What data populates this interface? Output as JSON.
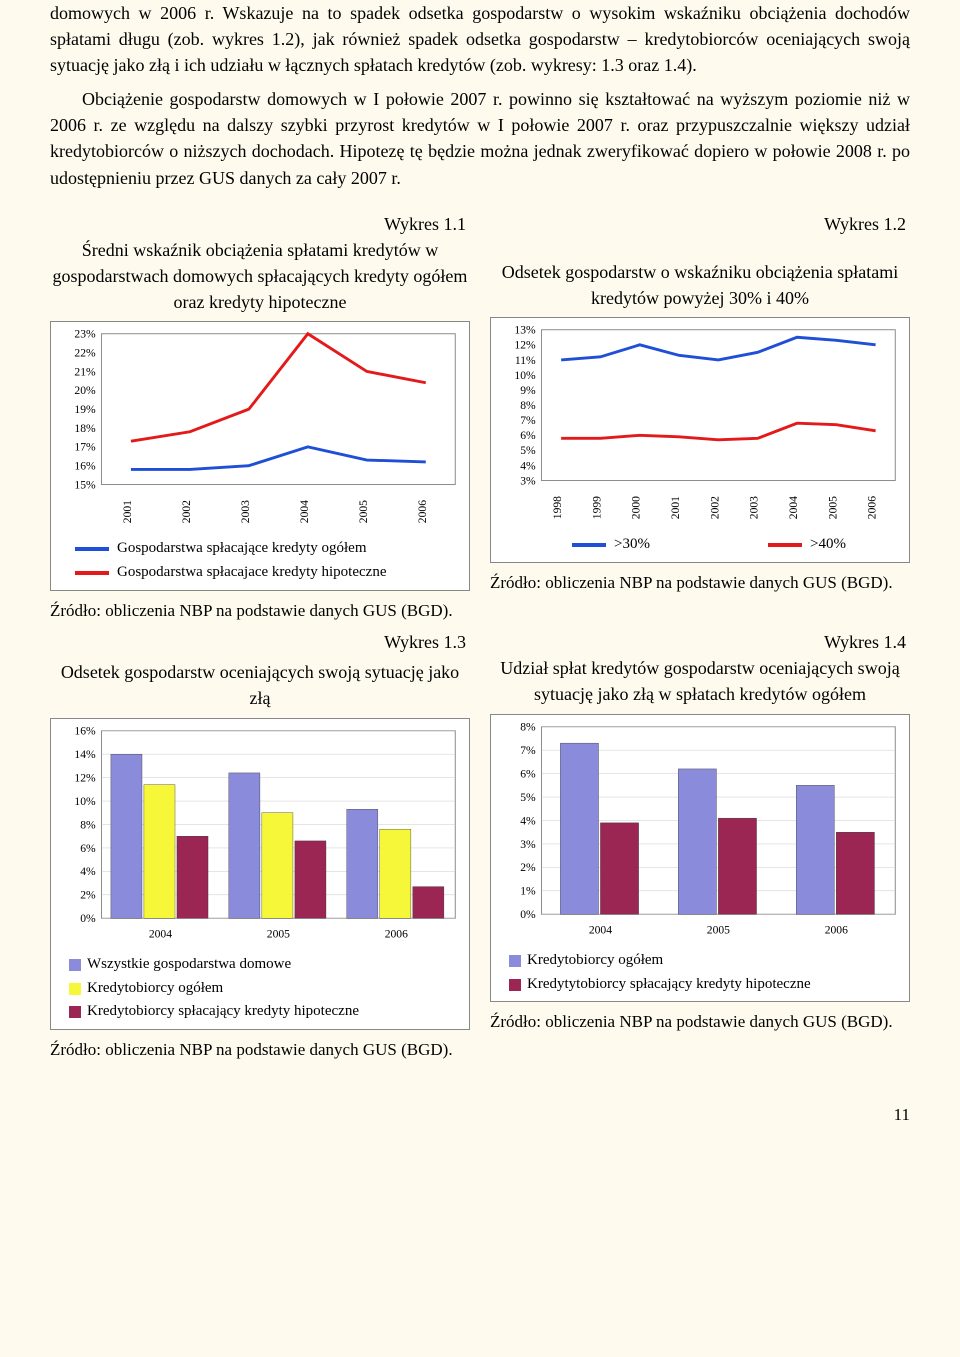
{
  "para1": "domowych w 2006 r. Wskazuje na to spadek odsetka gospodarstw o wysokim wskaźniku obciążenia dochodów spłatami długu (zob. wykres 1.2), jak również spadek odsetka gospodarstw – kredytobiorców oceniających swoją sytuację jako złą i ich udziału w łącznych spłatach kredytów (zob. wykresy: 1.3 oraz 1.4).",
  "para2": "Obciążenie gospodarstw domowych w I połowie 2007 r. powinno się kształtować na wyższym poziomie niż w 2006 r. ze względu na dalszy szybki przyrost kredytów w I połowie 2007 r. oraz przypuszczalnie większy udział kredytobiorców o niższych dochodach. Hipotezę tę będzie można jednak zweryfikować dopiero w połowie 2008 r. po udostępnieniu przez GUS danych za cały 2007 r.",
  "source": "Źródło: obliczenia NBP na podstawie danych GUS (BGD).",
  "pagenum": "11",
  "chart1": {
    "label": "Wykres 1.1",
    "title": "Średni wskaźnik obciążenia spłatami kredytów w gospodarstwach domowych spłacających kredyty ogółem oraz kredyty hipoteczne",
    "yticks": [
      "23%",
      "22%",
      "21%",
      "20%",
      "19%",
      "18%",
      "17%",
      "16%",
      "15%"
    ],
    "xticks": [
      "2001",
      "2002",
      "2003",
      "2004",
      "2005",
      "2006"
    ],
    "series_blue": {
      "color": "#1f4fd6",
      "values": [
        15.8,
        15.8,
        16.0,
        17.0,
        16.3,
        16.2
      ]
    },
    "series_red": {
      "color": "#e41a1a",
      "values": [
        17.3,
        17.8,
        19.0,
        23.0,
        21.0,
        20.4
      ]
    },
    "legend_blue": "Gospodarstwa spłacające kredyty ogółem",
    "legend_red": "Gospodarstwa spłacajace kredyty hipoteczne",
    "line_width": 3,
    "ymin": 15,
    "ymax": 23,
    "bg": "#ffffff",
    "box_border": "#888888",
    "label_fontsize": 12
  },
  "chart2": {
    "label": "Wykres 1.2",
    "title": "Odsetek gospodarstw o wskaźniku obciążenia spłatami kredytów powyżej 30% i 40%",
    "yticks": [
      "13%",
      "12%",
      "11%",
      "10%",
      "9%",
      "8%",
      "7%",
      "6%",
      "5%",
      "4%",
      "3%"
    ],
    "xticks": [
      "1998",
      "1999",
      "2000",
      "2001",
      "2002",
      "2003",
      "2004",
      "2005",
      "2006"
    ],
    "series_blue": {
      "color": "#1f4fd6",
      "values": [
        11.0,
        11.2,
        12.0,
        11.3,
        11.0,
        11.5,
        12.5,
        12.3,
        12.0
      ]
    },
    "series_red": {
      "color": "#e41a1a",
      "values": [
        5.8,
        5.8,
        6.0,
        5.9,
        5.7,
        5.8,
        6.8,
        6.7,
        6.3
      ]
    },
    "legend_blue": ">30%",
    "legend_red": ">40%",
    "line_width": 3,
    "ymin": 3,
    "ymax": 13,
    "bg": "#ffffff",
    "label_fontsize": 12
  },
  "chart3": {
    "label": "Wykres 1.3",
    "title": "Odsetek gospodarstw oceniających swoją sytuację jako złą",
    "yticks": [
      "16%",
      "14%",
      "12%",
      "10%",
      "8%",
      "6%",
      "4%",
      "2%",
      "0%"
    ],
    "xticks": [
      "2004",
      "2005",
      "2006"
    ],
    "ymin": 0,
    "ymax": 16,
    "bar_colors": [
      "#8b8bdc",
      "#f7f73a",
      "#9b2553"
    ],
    "series": [
      [
        14.0,
        11.4,
        7.0
      ],
      [
        12.4,
        9.0,
        6.6
      ],
      [
        9.3,
        7.6,
        2.7
      ]
    ],
    "legend": [
      "Wszystkie gospodarstwa domowe",
      "Kredytobiorcy ogółem",
      "Kredytobiorcy spłacający kredyty hipoteczne"
    ],
    "bar_width": 0.28,
    "bg": "#ffffff",
    "label_fontsize": 12
  },
  "chart4": {
    "label": "Wykres 1.4",
    "title": "Udział spłat kredytów gospodarstw oceniających swoją sytuację jako złą w spłatach kredytów ogółem",
    "yticks": [
      "8%",
      "7%",
      "6%",
      "5%",
      "4%",
      "3%",
      "2%",
      "1%",
      "0%"
    ],
    "xticks": [
      "2004",
      "2005",
      "2006"
    ],
    "ymin": 0,
    "ymax": 8,
    "bar_colors": [
      "#8b8bdc",
      "#9b2553"
    ],
    "series": [
      [
        7.3,
        3.9
      ],
      [
        6.2,
        4.1
      ],
      [
        5.5,
        3.5
      ]
    ],
    "legend": [
      "Kredytobiorcy ogółem",
      "Kredytytobiorcy spłacający kredyty hipoteczne"
    ],
    "bar_width": 0.34,
    "bg": "#ffffff",
    "label_fontsize": 12
  }
}
